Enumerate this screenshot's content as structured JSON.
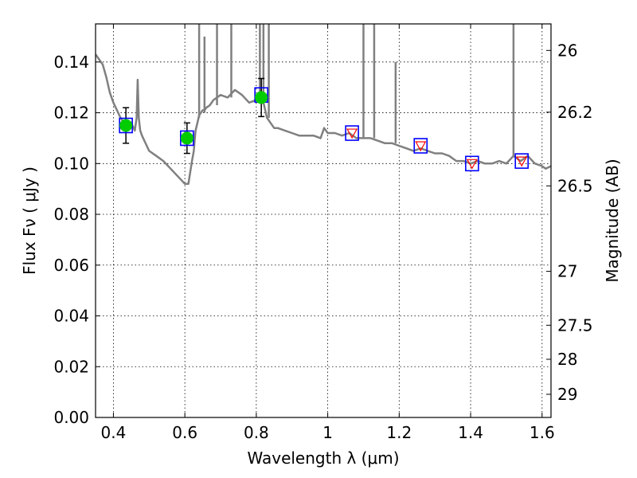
{
  "chart_data": {
    "type": "scatter",
    "xlabel": "Wavelength  λ (μm)",
    "ylabel": "Flux  Fν  ( μJy )",
    "y2label": "Magnitude (AB)",
    "xlim": [
      0.35,
      1.625
    ],
    "ylim": [
      0.0,
      0.155
    ],
    "x_ticks": [
      0.4,
      0.6,
      0.8,
      1.0,
      1.2,
      1.4,
      1.6
    ],
    "x_tick_labels": [
      "0.4",
      "0.6",
      "0.8",
      "1",
      "1.2",
      "1.4",
      "1.6"
    ],
    "y_ticks": [
      0.0,
      0.02,
      0.04,
      0.06,
      0.08,
      0.1,
      0.12,
      0.14
    ],
    "y_tick_labels": [
      "0.00",
      "0.02",
      "0.04",
      "0.06",
      "0.08",
      "0.10",
      "0.12",
      "0.14"
    ],
    "y2_ticks": [
      26,
      26.2,
      26.5,
      27,
      27.5,
      28,
      29
    ],
    "y2_tick_labels": [
      "26",
      "26.2",
      "26.5",
      "27",
      "27.5",
      "28",
      "29"
    ],
    "grid": true,
    "colors": {
      "spectrum": "#808080",
      "observed_marker": "#00cc00",
      "model_box": "#0000ff",
      "upper_limit": "#ff0000",
      "error_bar": "#000000"
    },
    "series": [
      {
        "type": "line",
        "x": [
          0.35,
          0.36,
          0.37,
          0.38,
          0.39,
          0.4,
          0.41,
          0.42,
          0.43,
          0.44,
          0.45,
          0.46,
          0.465,
          0.468,
          0.471,
          0.475,
          0.48,
          0.5,
          0.52,
          0.54,
          0.56,
          0.58,
          0.6,
          0.61,
          0.62,
          0.625,
          0.628,
          0.63,
          0.635,
          0.64,
          0.645,
          0.65,
          0.655,
          0.66,
          0.67,
          0.68,
          0.69,
          0.7,
          0.72,
          0.74,
          0.76,
          0.78,
          0.8,
          0.81,
          0.82,
          0.83,
          0.84,
          0.85,
          0.86,
          0.88,
          0.9,
          0.92,
          0.94,
          0.96,
          0.98,
          0.99,
          1.0,
          1.02,
          1.04,
          1.06,
          1.08,
          1.1,
          1.12,
          1.14,
          1.16,
          1.18,
          1.2,
          1.22,
          1.24,
          1.26,
          1.28,
          1.3,
          1.32,
          1.34,
          1.36,
          1.38,
          1.4,
          1.42,
          1.44,
          1.46,
          1.48,
          1.5,
          1.52,
          1.54,
          1.56,
          1.58,
          1.6,
          1.61,
          1.625
        ],
        "y": [
          0.143,
          0.141,
          0.139,
          0.134,
          0.128,
          0.124,
          0.121,
          0.118,
          0.116,
          0.117,
          0.116,
          0.113,
          0.118,
          0.133,
          0.118,
          0.113,
          0.111,
          0.105,
          0.103,
          0.101,
          0.098,
          0.095,
          0.092,
          0.092,
          0.101,
          0.105,
          0.11,
          0.113,
          0.116,
          0.119,
          0.12,
          0.121,
          0.121,
          0.122,
          0.123,
          0.125,
          0.126,
          0.127,
          0.126,
          0.129,
          0.127,
          0.124,
          0.125,
          0.126,
          0.124,
          0.118,
          0.116,
          0.114,
          0.114,
          0.113,
          0.112,
          0.111,
          0.111,
          0.111,
          0.11,
          0.114,
          0.112,
          0.112,
          0.111,
          0.112,
          0.11,
          0.11,
          0.11,
          0.109,
          0.108,
          0.108,
          0.107,
          0.106,
          0.105,
          0.106,
          0.105,
          0.104,
          0.104,
          0.103,
          0.101,
          0.101,
          0.1,
          0.101,
          0.1,
          0.1,
          0.101,
          0.1,
          0.103,
          0.101,
          0.103,
          0.1,
          0.099,
          0.098,
          0.099
        ]
      },
      {
        "type": "scatter",
        "name": "observed",
        "x": [
          0.435,
          0.606,
          0.814
        ],
        "y": [
          0.115,
          0.11,
          0.126
        ],
        "yerr": [
          0.007,
          0.006,
          0.0075
        ]
      },
      {
        "type": "box",
        "name": "model",
        "x": [
          0.435,
          0.606,
          0.814,
          1.068,
          1.26,
          1.404,
          1.543
        ],
        "y": [
          0.115,
          0.11,
          0.127,
          0.112,
          0.107,
          0.1,
          0.101
        ]
      },
      {
        "type": "upper_limit",
        "name": "upper limits",
        "x": [
          1.068,
          1.26,
          1.404,
          1.543
        ],
        "y": [
          0.112,
          0.107,
          0.1,
          0.101
        ]
      }
    ]
  }
}
